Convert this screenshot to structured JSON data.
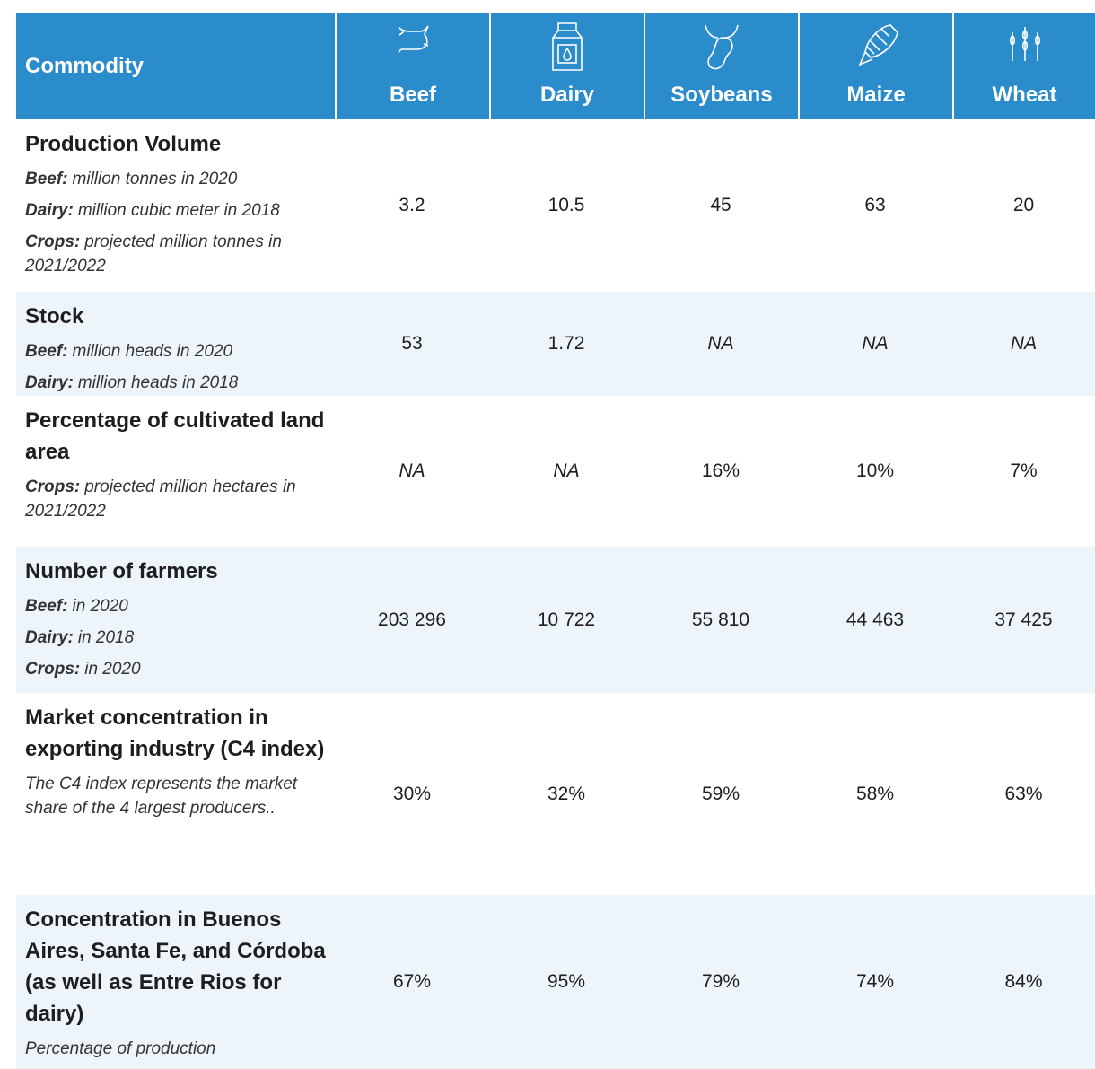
{
  "header": {
    "title": "Commodity",
    "columns": [
      "Beef",
      "Dairy",
      "Soybeans",
      "Maize",
      "Wheat"
    ]
  },
  "rows": [
    {
      "title": "Production Volume",
      "notes": [
        {
          "label": "Beef:",
          "text": "million tonnes in 2020"
        },
        {
          "label": "Dairy:",
          "text": "million cubic meter in 2018"
        },
        {
          "label": "Crops:",
          "text": "projected million tonnes in 2021/2022"
        }
      ],
      "values": [
        "3.2",
        "10.5",
        "45",
        "63",
        "20"
      ]
    },
    {
      "title": "Stock",
      "notes": [
        {
          "label": "Beef:",
          "text": "million heads in 2020"
        },
        {
          "label": "Dairy:",
          "text": "million heads in 2018"
        }
      ],
      "values": [
        "53",
        "1.72",
        "NA",
        "NA",
        "NA"
      ]
    },
    {
      "title": "Percentage of cultivated land area",
      "notes": [
        {
          "label": "Crops:",
          "text": "projected million hectares in 2021/2022"
        }
      ],
      "values": [
        "NA",
        "NA",
        "16%",
        "10%",
        "7%"
      ]
    },
    {
      "title": "Number of farmers",
      "notes": [
        {
          "label": "Beef:",
          "text": "in 2020"
        },
        {
          "label": "Dairy:",
          "text": "in 2018"
        },
        {
          "label": "Crops:",
          "text": "in 2020"
        }
      ],
      "values": [
        "203 296",
        "10 722",
        "55 810",
        "44 463",
        "37 425"
      ]
    },
    {
      "title": "Market concentration in exporting industry (C4 index)",
      "notes": [
        {
          "text": "The C4 index represents the market share of the 4 largest producers.."
        }
      ],
      "values": [
        "30%",
        "32%",
        "59%",
        "58%",
        "63%"
      ]
    },
    {
      "title": "Concentration in Buenos Aires, Santa Fe, and Córdoba (as well as Entre Rios for dairy)",
      "notes": [
        {
          "text": "Percentage of production"
        }
      ],
      "values": [
        "67%",
        "95%",
        "79%",
        "74%",
        "84%"
      ]
    }
  ]
}
